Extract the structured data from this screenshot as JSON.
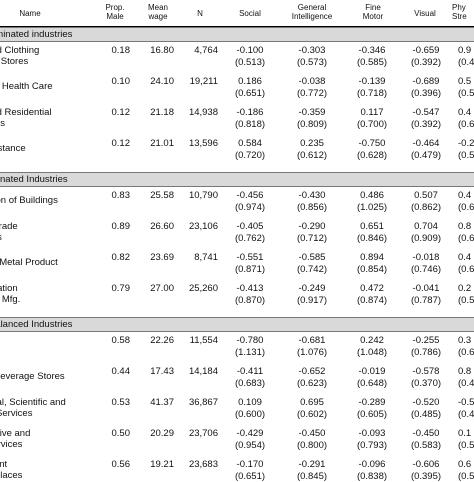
{
  "table": {
    "headers": {
      "name": "Name",
      "prop_male": "Prop.\nMale",
      "mean_wage": "Mean\nwage",
      "n": "N",
      "social": "Social",
      "gen_int": "General\nIntelligence",
      "fine_motor": "Fine\nMotor",
      "visual": "Visual",
      "physical": "Phy\nStre"
    },
    "sections": [
      {
        "title": "ominated industries",
        "rows": [
          {
            "name": [
              "and Clothing",
              "ies Stores"
            ],
            "prop": "0.18",
            "wage": "16.80",
            "n": "4,764",
            "social": [
              "-0.100",
              "(0.513)"
            ],
            "gi": [
              "-0.303",
              "(0.573)"
            ],
            "fm": [
              "-0.346",
              "(0.585)"
            ],
            "vis": [
              "-0.659",
              "(0.392)"
            ],
            "phy": [
              "0.9",
              "(0.4"
            ]
          },
          {
            "name": [
              "ory Health Care"
            ],
            "prop": "0.10",
            "wage": "24.10",
            "n": "19,211",
            "social": [
              "0.186",
              "(0.651)"
            ],
            "gi": [
              "-0.038",
              "(0.772)"
            ],
            "fm": [
              "-0.139",
              "(0.718)"
            ],
            "vis": [
              "-0.689",
              "(0.396)"
            ],
            "phy": [
              "0.5",
              "(0.5"
            ]
          },
          {
            "name": [
              "and Residential",
              "lities"
            ],
            "prop": "0.12",
            "wage": "21.18",
            "n": "14,938",
            "social": [
              "-0.186",
              "(0.818)"
            ],
            "gi": [
              "-0.359",
              "(0.809)"
            ],
            "fm": [
              "0.117",
              "(0.700)"
            ],
            "vis": [
              "-0.547",
              "(0.392)"
            ],
            "phy": [
              "0.4",
              "(0.6"
            ]
          },
          {
            "name": [
              "ssistance"
            ],
            "prop": "0.12",
            "wage": "21.01",
            "n": "13,596",
            "social": [
              "0.584",
              "(0.720)"
            ],
            "gi": [
              "0.235",
              "(0.612)"
            ],
            "fm": [
              "-0.750",
              "(0.628)"
            ],
            "vis": [
              "-0.464",
              "(0.479)"
            ],
            "phy": [
              "-0.2",
              "(0.5"
            ]
          }
        ]
      },
      {
        "title": "minated Industries",
        "rows": [
          {
            "name": [
              "ction of Buildings"
            ],
            "prop": "0.83",
            "wage": "25.58",
            "n": "10,790",
            "social": [
              "-0.456",
              "(0.974)"
            ],
            "gi": [
              "-0.430",
              "(0.856)"
            ],
            "fm": [
              "0.486",
              "(1.025)"
            ],
            "vis": [
              "0.507",
              "(0.862)"
            ],
            "phy": [
              "0.4",
              "(0.6"
            ]
          },
          {
            "name": [
              "y Trade",
              "tors"
            ],
            "prop": "0.89",
            "wage": "26.60",
            "n": "23,106",
            "social": [
              "-0.405",
              "(0.762)"
            ],
            "gi": [
              "-0.290",
              "(0.712)"
            ],
            "fm": [
              "0.651",
              "(0.846)"
            ],
            "vis": [
              "0.704",
              "(0.909)"
            ],
            "phy": [
              "0.8",
              "(0.6"
            ]
          },
          {
            "name": [
              "ed Metal Product"
            ],
            "prop": "0.82",
            "wage": "23.69",
            "n": "8,741",
            "social": [
              "-0.551",
              "(0.871)"
            ],
            "gi": [
              "-0.585",
              "(0.742)"
            ],
            "fm": [
              "0.894",
              "(0.854)"
            ],
            "vis": [
              "-0.018",
              "(0.746)"
            ],
            "phy": [
              "0.4",
              "(0.6"
            ]
          },
          {
            "name": [
              "ortation",
              "ent Mfg."
            ],
            "prop": "0.79",
            "wage": "27.00",
            "n": "25,260",
            "social": [
              "-0.413",
              "(0.870)"
            ],
            "gi": [
              "-0.249",
              "(0.917)"
            ],
            "fm": [
              "0.472",
              "(0.874)"
            ],
            "vis": [
              "-0.041",
              "(0.787)"
            ],
            "phy": [
              "0.2",
              "(0.5"
            ]
          }
        ]
      },
      {
        "title": "balanced Industries",
        "rows": [
          {
            "name": [
              "fg."
            ],
            "prop": "0.58",
            "wage": "22.26",
            "n": "11,554",
            "social": [
              "-0.780",
              "(1.131)"
            ],
            "gi": [
              "-0.681",
              "(1.076)"
            ],
            "fm": [
              "0.242",
              "(1.048)"
            ],
            "vis": [
              "-0.255",
              "(0.786)"
            ],
            "phy": [
              "0.3",
              "(0.6"
            ]
          },
          {
            "name": [
              "d Beverage Stores"
            ],
            "prop": "0.44",
            "wage": "17.43",
            "n": "14,184",
            "social": [
              "-0.411",
              "(0.683)"
            ],
            "gi": [
              "-0.652",
              "(0.623)"
            ],
            "fm": [
              "-0.019",
              "(0.648)"
            ],
            "vis": [
              "-0.578",
              "(0.370)"
            ],
            "phy": [
              "0.8",
              "(0.4"
            ]
          },
          {
            "name": [
              "onal, Scientific and",
              "al Services"
            ],
            "prop": "0.53",
            "wage": "41.37",
            "n": "36,867",
            "social": [
              "0.109",
              "(0.600)"
            ],
            "gi": [
              "0.695",
              "(0.602)"
            ],
            "fm": [
              "-0.289",
              "(0.605)"
            ],
            "vis": [
              "-0.520",
              "(0.485)"
            ],
            "phy": [
              "-0.5",
              "(0.4"
            ]
          },
          {
            "name": [
              "trative and",
              "Services"
            ],
            "prop": "0.50",
            "wage": "20.29",
            "n": "23,706",
            "social": [
              "-0.429",
              "(0.954)"
            ],
            "gi": [
              "-0.450",
              "(0.800)"
            ],
            "fm": [
              "-0.093",
              "(0.793)"
            ],
            "vis": [
              "-0.450",
              "(0.583)"
            ],
            "phy": [
              "0.1",
              "(0.5"
            ]
          },
          {
            "name": [
              "ment",
              "n Places"
            ],
            "prop": "0.56",
            "wage": "19.21",
            "n": "23,683",
            "social": [
              "-0.170",
              "(0.651)"
            ],
            "gi": [
              "-0.291",
              "(0.845)"
            ],
            "fm": [
              "-0.096",
              "(0.838)"
            ],
            "vis": [
              "-0.606",
              "(0.395)"
            ],
            "phy": [
              "0.6",
              "(0.5"
            ]
          }
        ]
      }
    ]
  }
}
